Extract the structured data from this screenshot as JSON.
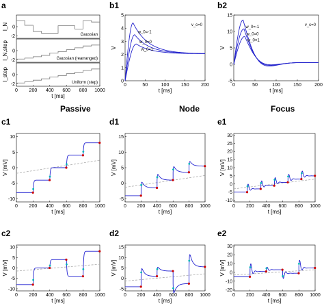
{
  "section_titles": {
    "passive": "Passive",
    "node": "Node",
    "focus": "Focus"
  },
  "panel_labels": {
    "a": "a",
    "b1": "b1",
    "b2": "b2",
    "c1": "c1",
    "d1": "d1",
    "e1": "e1",
    "c2": "c2",
    "d2": "d2",
    "e2": "e2"
  },
  "colors": {
    "trace": "#1f1fd0",
    "response": "#2222cc",
    "dashed": "#aaaaaa",
    "marker_start": "#00b8b8",
    "marker_end": "#cc0000"
  },
  "chart_data": [
    {
      "id": "a",
      "type": "line",
      "subpanels": [
        {
          "ylabel": "I_N",
          "name": "Gaussian",
          "yticks": [
            "0",
            "-2"
          ],
          "x": [
            0,
            100,
            200,
            300,
            400,
            500,
            600,
            700,
            800,
            900,
            1000
          ],
          "y": [
            1.3,
            0.3,
            -1.0,
            -1.4,
            -1.4,
            0.2,
            0.2,
            -0.5,
            1.3,
            1.0,
            1.0
          ]
        },
        {
          "ylabel": "I_N,step",
          "name": "Gaussian (rearranged)",
          "yticks": [
            "0",
            "-2"
          ],
          "x": [
            0,
            100,
            200,
            300,
            400,
            500,
            600,
            700,
            800,
            900,
            1000
          ],
          "y": [
            -1.8,
            -1.6,
            -1.3,
            -1.0,
            -0.5,
            -0.2,
            0.2,
            0.6,
            1.0,
            1.2,
            1.2
          ]
        },
        {
          "ylabel": "I_step",
          "name": "Uniform (step)",
          "yticks": [
            "0",
            "-2"
          ],
          "x": [
            0,
            100,
            200,
            300,
            400,
            500,
            600,
            700,
            800,
            900,
            1000
          ],
          "y": [
            -1.8,
            -1.5,
            -1.2,
            -0.9,
            -0.5,
            -0.2,
            0.2,
            0.5,
            0.9,
            1.2,
            1.2
          ]
        }
      ],
      "xlabel": "t [ms]",
      "xticks": [
        "0",
        "200",
        "400",
        "600",
        "800",
        "1000"
      ],
      "xlim": [
        0,
        1000
      ]
    },
    {
      "id": "b1",
      "type": "line",
      "xlabel": "t [ms]",
      "ylabel": "V",
      "xlim": [
        0,
        200
      ],
      "ylim": [
        0,
        5
      ],
      "xticks": [
        "0",
        "50",
        "100",
        "150",
        "200"
      ],
      "yticks": [
        "0",
        "1",
        "2",
        "3",
        "4",
        "5"
      ],
      "annotation": "v_c=0",
      "series": [
        {
          "name": "w_0=-1",
          "peak": 4.4,
          "tpeak": 20,
          "final": 2.05
        },
        {
          "name": "w_0=0",
          "peak": 3.5,
          "tpeak": 24,
          "final": 2.05
        },
        {
          "name": "w_0=1",
          "peak": 2.8,
          "tpeak": 28,
          "final": 2.05
        }
      ]
    },
    {
      "id": "b2",
      "type": "line",
      "xlabel": "t [ms]",
      "ylabel": "V",
      "xlim": [
        0,
        200
      ],
      "ylim": [
        -5,
        15
      ],
      "xticks": [
        "0",
        "50",
        "100",
        "150",
        "200"
      ],
      "yticks": [
        "-5",
        "0",
        "5",
        "10",
        "15"
      ],
      "annotation": "v_c=0",
      "series": [
        {
          "name": "w_0=-1",
          "peak": 13.5,
          "tpeak": 22,
          "final": 0.5
        },
        {
          "name": "w_0=0",
          "peak": 10.8,
          "tpeak": 24,
          "final": 0.5
        },
        {
          "name": "w_0=1",
          "peak": 8.5,
          "tpeak": 26,
          "final": 0.5
        }
      ]
    },
    {
      "id": "c1",
      "type": "line",
      "kind": "passive",
      "xlabel": "t [ms]",
      "ylabel": "V [mV]",
      "xlim": [
        0,
        1000
      ],
      "ylim": [
        -11,
        11
      ],
      "xticks": [
        "0",
        "200",
        "400",
        "600",
        "800",
        "1000"
      ],
      "yticks": [
        "-10",
        "-5",
        "0",
        "5",
        "10"
      ],
      "levels": [
        -8,
        -4,
        0,
        4,
        8
      ],
      "dashed": [
        -1.8,
        2.4
      ]
    },
    {
      "id": "d1",
      "type": "line",
      "kind": "node",
      "xlabel": "t [ms]",
      "ylabel": "V [mV]",
      "xlim": [
        0,
        1000
      ],
      "ylim": [
        -6,
        16
      ],
      "xticks": [
        "0",
        "200",
        "400",
        "600",
        "800",
        "1000"
      ],
      "yticks": [
        "-5",
        "0",
        "5",
        "10",
        "15"
      ],
      "levels": [
        -4,
        -1.5,
        1,
        3.5,
        5.5
      ],
      "dashed": [
        -1.3,
        2.5
      ]
    },
    {
      "id": "e1",
      "type": "line",
      "kind": "focus",
      "xlabel": "t [ms]",
      "ylabel": "V [mV]",
      "xlim": [
        0,
        1000
      ],
      "ylim": [
        -11,
        31
      ],
      "xticks": [
        "0",
        "200",
        "400",
        "600",
        "800",
        "1000"
      ],
      "yticks": [
        "-10",
        "-5",
        "0",
        "5",
        "10",
        "15",
        "20",
        "25",
        "30"
      ],
      "levels": [
        -5,
        -3,
        -1,
        1,
        3,
        5
      ],
      "dashed": [
        -3,
        3
      ]
    },
    {
      "id": "c2",
      "type": "line",
      "kind": "passive",
      "xlabel": "t [ms]",
      "ylabel": "V [mV]",
      "xlim": [
        0,
        1000
      ],
      "ylim": [
        -11,
        11
      ],
      "xticks": [
        "0",
        "200",
        "400",
        "600",
        "800",
        "1000"
      ],
      "yticks": [
        "-10",
        "-5",
        "0",
        "5",
        "10"
      ],
      "levels": [
        -8,
        0,
        4,
        -4,
        8
      ],
      "dashed": [
        -1.5,
        1.8
      ]
    },
    {
      "id": "d2",
      "type": "line",
      "kind": "node",
      "xlabel": "t [ms]",
      "ylabel": "V [mV]",
      "xlim": [
        0,
        1000
      ],
      "ylim": [
        -6,
        16
      ],
      "xticks": [
        "0",
        "200",
        "400",
        "600",
        "800",
        "1000"
      ],
      "yticks": [
        "-5",
        "0",
        "5",
        "10",
        "15"
      ],
      "levels": [
        -4,
        1,
        3.5,
        -2.5,
        5.5
      ],
      "dashed": [
        -1.3,
        2.2
      ]
    },
    {
      "id": "e2",
      "type": "line",
      "kind": "focus",
      "xlabel": "t [ms]",
      "ylabel": "V [mV]",
      "xlim": [
        0,
        1000
      ],
      "ylim": [
        -21,
        31
      ],
      "xticks": [
        "0",
        "200",
        "400",
        "600",
        "800",
        "1000"
      ],
      "yticks": [
        "-20",
        "-10",
        "0",
        "10",
        "20",
        "30"
      ],
      "levels": [
        -5,
        1,
        3,
        -1,
        5
      ],
      "dashed": [
        -3,
        3
      ]
    }
  ]
}
